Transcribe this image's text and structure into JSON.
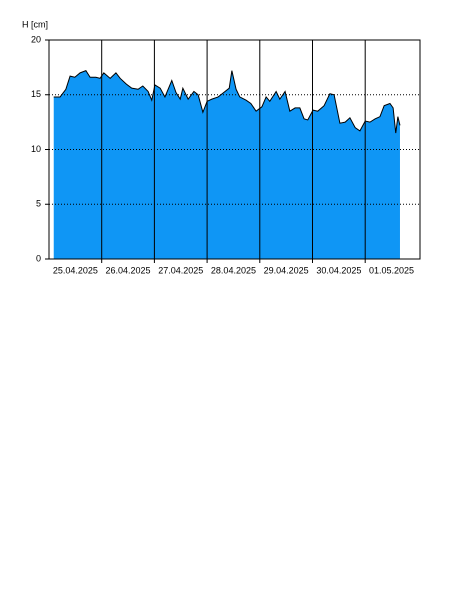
{
  "chart_data": {
    "type": "area",
    "ylabel": "H [cm]",
    "x": [
      0.09,
      0.21,
      0.32,
      0.4,
      0.49,
      0.59,
      0.7,
      0.78,
      0.89,
      0.97,
      1.04,
      1.16,
      1.27,
      1.35,
      1.46,
      1.57,
      1.69,
      1.78,
      1.88,
      1.95,
      2.01,
      2.11,
      2.2,
      2.33,
      2.41,
      2.49,
      2.54,
      2.64,
      2.75,
      2.83,
      2.92,
      3.0,
      3.09,
      3.21,
      3.34,
      3.42,
      3.47,
      3.55,
      3.62,
      3.74,
      3.83,
      3.93,
      4.04,
      4.12,
      4.19,
      4.31,
      4.38,
      4.48,
      4.57,
      4.67,
      4.76,
      4.84,
      4.91,
      5.01,
      5.1,
      5.22,
      5.33,
      5.41,
      5.52,
      5.62,
      5.71,
      5.81,
      5.9,
      6.0,
      6.09,
      6.19,
      6.28,
      6.36,
      6.47,
      6.53,
      6.58,
      6.62,
      6.66
    ],
    "values": [
      14.8,
      14.8,
      15.5,
      16.7,
      16.6,
      17.0,
      17.2,
      16.6,
      16.6,
      16.5,
      17.0,
      16.5,
      17.0,
      16.5,
      16.0,
      15.6,
      15.5,
      15.8,
      15.3,
      14.5,
      15.9,
      15.6,
      14.8,
      16.3,
      15.2,
      14.6,
      15.6,
      14.6,
      15.3,
      15.0,
      13.4,
      14.4,
      14.6,
      14.8,
      15.3,
      15.6,
      17.2,
      15.5,
      14.8,
      14.5,
      14.2,
      13.5,
      13.9,
      14.8,
      14.4,
      15.3,
      14.6,
      15.3,
      13.5,
      13.8,
      13.8,
      12.8,
      12.7,
      13.6,
      13.5,
      14.0,
      15.1,
      15.0,
      12.4,
      12.5,
      12.9,
      12.0,
      11.7,
      12.6,
      12.5,
      12.8,
      13.0,
      14.0,
      14.2,
      13.8,
      11.5,
      13.0,
      12.2
    ],
    "color": "#0f96f5",
    "line_color": "#000000",
    "xlim": [
      0,
      7.04
    ],
    "xticks": [
      {
        "value": 0.5,
        "label": "25.04.2025"
      },
      {
        "value": 1.5,
        "label": "26.04.2025"
      },
      {
        "value": 2.5,
        "label": "27.04.2025"
      },
      {
        "value": 3.5,
        "label": "28.04.2025"
      },
      {
        "value": 4.5,
        "label": "29.04.2025"
      },
      {
        "value": 5.5,
        "label": "30.04.2025"
      },
      {
        "value": 6.5,
        "label": "01.05.2025"
      }
    ],
    "xgrid": [
      1,
      2,
      3,
      4,
      5,
      6
    ],
    "ylim": [
      0,
      20
    ],
    "yticks": [
      0,
      5,
      10,
      15,
      20
    ],
    "grid": true
  }
}
